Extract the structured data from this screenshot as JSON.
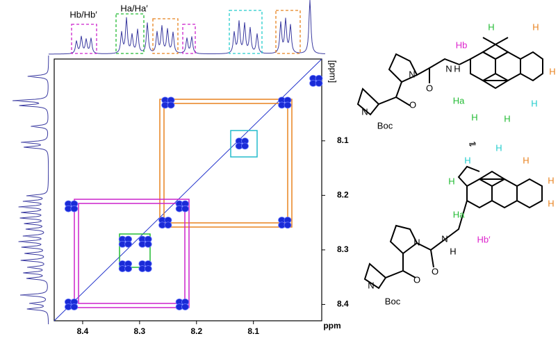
{
  "chart_data": {
    "type": "cosy",
    "x_label": "ppm",
    "y_label": "[ppm]",
    "xlim": [
      8.45,
      7.98
    ],
    "ylim": [
      7.95,
      8.43
    ],
    "xticks": [
      8.4,
      8.3,
      8.2,
      8.1
    ],
    "yticks": [
      8.1,
      8.2,
      8.3,
      8.4
    ],
    "annotations": [
      "Hb/Hb′",
      "Ha/Ha′"
    ],
    "peaks": {
      "color": "#1a2bd6",
      "x": [
        7.99,
        8.045,
        8.045,
        8.25,
        8.12,
        8.42,
        8.225,
        8.42,
        8.225,
        8.325,
        8.29,
        8.325,
        8.29,
        8.255
      ],
      "y": [
        7.99,
        8.03,
        8.25,
        8.03,
        8.105,
        8.22,
        8.22,
        8.4,
        8.4,
        8.285,
        8.285,
        8.33,
        8.33,
        8.25
      ]
    }
  },
  "structures": {
    "top": [
      "Hb",
      "H",
      "H",
      "H",
      "H",
      "H",
      "H",
      "Ha",
      "N",
      "H",
      "N",
      "O",
      "O",
      "N",
      "Boc"
    ],
    "bottom": [
      "H",
      "H",
      "H",
      "H",
      "H",
      "H",
      "Ha",
      "Hb′",
      "N",
      "H",
      "N",
      "O",
      "O",
      "N",
      "Boc"
    ]
  }
}
